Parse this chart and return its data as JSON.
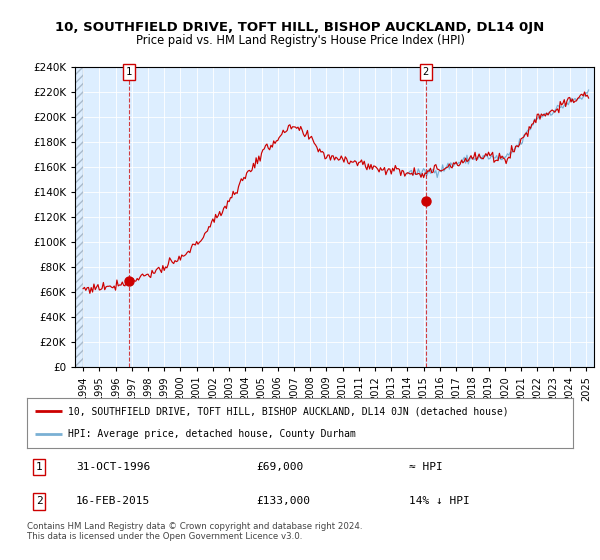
{
  "title": "10, SOUTHFIELD DRIVE, TOFT HILL, BISHOP AUCKLAND, DL14 0JN",
  "subtitle": "Price paid vs. HM Land Registry's House Price Index (HPI)",
  "legend_line1": "10, SOUTHFIELD DRIVE, TOFT HILL, BISHOP AUCKLAND, DL14 0JN (detached house)",
  "legend_line2": "HPI: Average price, detached house, County Durham",
  "annotation1_label": "1",
  "annotation1_date": "31-OCT-1996",
  "annotation1_price": "£69,000",
  "annotation1_hpi": "≈ HPI",
  "annotation2_label": "2",
  "annotation2_date": "16-FEB-2015",
  "annotation2_price": "£133,000",
  "annotation2_hpi": "14% ↓ HPI",
  "footer": "Contains HM Land Registry data © Crown copyright and database right 2024.\nThis data is licensed under the Open Government Licence v3.0.",
  "red_color": "#cc0000",
  "blue_color": "#7ab0d4",
  "bg_color": "#ddeeff",
  "ylim": [
    0,
    240000
  ],
  "yticks": [
    0,
    20000,
    40000,
    60000,
    80000,
    100000,
    120000,
    140000,
    160000,
    180000,
    200000,
    220000,
    240000
  ],
  "sale1_x": 1996.83,
  "sale1_y": 69000,
  "sale2_x": 2015.12,
  "sale2_y": 133000,
  "hpi_anchor_years": [
    1994.0,
    1995.0,
    1996.0,
    1997.0,
    1998.0,
    1999.0,
    2000.0,
    2001.0,
    2002.0,
    2003.0,
    2004.0,
    2005.0,
    2006.0,
    2007.0,
    2008.0,
    2009.0,
    2010.0,
    2011.0,
    2012.0,
    2013.0,
    2014.0,
    2015.0,
    2016.0,
    2017.0,
    2018.0,
    2019.0,
    2020.0,
    2021.0,
    2022.0,
    2023.0,
    2024.0,
    2025.2
  ],
  "hpi_anchor_vals": [
    62000,
    63500,
    65500,
    69500,
    74000,
    79000,
    86000,
    98000,
    115000,
    133000,
    152000,
    170000,
    183000,
    192000,
    182000,
    168000,
    167000,
    163000,
    159000,
    157000,
    156000,
    155000,
    158000,
    163000,
    167000,
    168000,
    166000,
    180000,
    200000,
    205000,
    212000,
    218000
  ],
  "blue_start_year": 2014.0,
  "xtick_years": [
    1994,
    1995,
    1996,
    1997,
    1998,
    1999,
    2000,
    2001,
    2002,
    2003,
    2004,
    2005,
    2006,
    2007,
    2008,
    2009,
    2010,
    2011,
    2012,
    2013,
    2014,
    2015,
    2016,
    2017,
    2018,
    2019,
    2020,
    2021,
    2022,
    2023,
    2024,
    2025
  ],
  "xlim": [
    1993.5,
    2025.5
  ]
}
